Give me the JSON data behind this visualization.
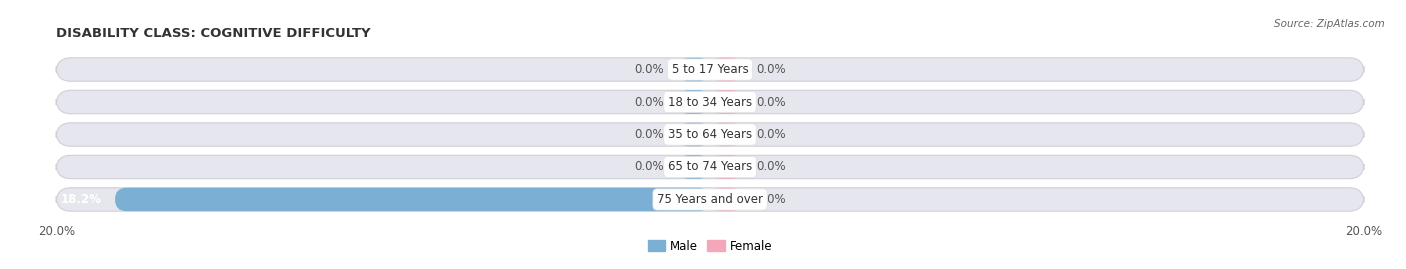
{
  "title": "DISABILITY CLASS: COGNITIVE DIFFICULTY",
  "source": "Source: ZipAtlas.com",
  "categories": [
    "5 to 17 Years",
    "18 to 34 Years",
    "35 to 64 Years",
    "65 to 74 Years",
    "75 Years and over"
  ],
  "male_values": [
    0.0,
    0.0,
    0.0,
    0.0,
    18.2
  ],
  "female_values": [
    0.0,
    0.0,
    0.0,
    0.0,
    0.0
  ],
  "male_color": "#7bafd4",
  "female_color": "#f4a7b9",
  "bar_bg_color": "#e6e6ee",
  "axis_limit": 20.0,
  "min_bar_display": 1.0,
  "bar_height": 0.72,
  "title_fontsize": 9.5,
  "label_fontsize": 8.5,
  "tick_fontsize": 8.5,
  "fig_width": 14.06,
  "fig_height": 2.69,
  "bg_color": "#ffffff"
}
